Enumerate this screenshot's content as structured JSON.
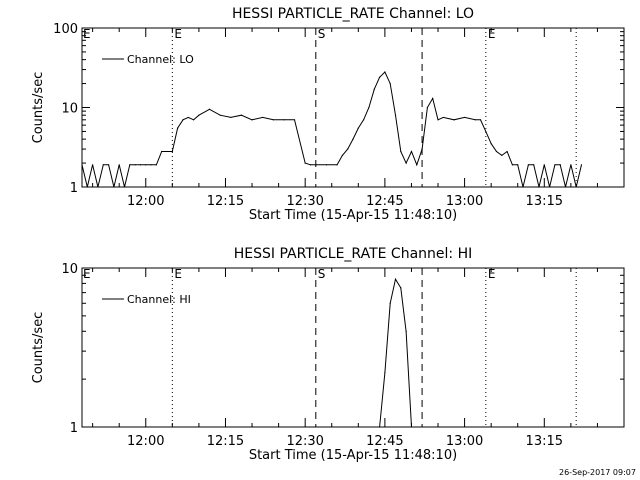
{
  "footer": {
    "timestamp": "26-Sep-2017 09:07"
  },
  "chart_data": [
    {
      "type": "line",
      "title": "HESSI PARTICLE_RATE Channel: LO",
      "xlabel": "Start Time (15-Apr-15 11:48:10)",
      "ylabel": "Counts/sec",
      "yscale": "log",
      "ylim": [
        1,
        100
      ],
      "y_ticks": [
        {
          "value": 1,
          "label": "1"
        },
        {
          "value": 10,
          "label": "10"
        },
        {
          "value": 100,
          "label": "100"
        }
      ],
      "xlim": [
        "11:48",
        "13:30"
      ],
      "x_ticks": [
        {
          "value": "12:00",
          "label": "12:00"
        },
        {
          "value": "12:15",
          "label": "12:15"
        },
        {
          "value": "12:30",
          "label": "12:30"
        },
        {
          "value": "12:45",
          "label": "12:45"
        },
        {
          "value": "13:00",
          "label": "13:00"
        },
        {
          "value": "13:15",
          "label": "13:15"
        }
      ],
      "legend": {
        "placement": "top-left",
        "label": "Channel: LO"
      },
      "markers": [
        {
          "time": "12:05",
          "label": "E",
          "style": "dotted"
        },
        {
          "time": "12:32",
          "label": "S",
          "style": "dashed"
        },
        {
          "time": "12:52",
          "label": "",
          "style": "dashed"
        },
        {
          "time": "13:04",
          "label": "E",
          "style": "dotted"
        },
        {
          "time": "13:21",
          "label": "",
          "style": "dotted"
        }
      ],
      "series": [
        {
          "x": [
            "11:48",
            "11:49",
            "11:50",
            "11:51",
            "11:52",
            "11:53",
            "11:54",
            "11:55",
            "11:56",
            "11:57",
            "11:58",
            "11:59",
            "12:00",
            "12:01",
            "12:02",
            "12:03",
            "12:04",
            "12:05",
            "12:06",
            "12:07",
            "12:08",
            "12:09",
            "12:10",
            "12:12",
            "12:14",
            "12:16",
            "12:18",
            "12:20",
            "12:22",
            "12:24",
            "12:26",
            "12:28",
            "12:30",
            "12:31",
            "12:32",
            "12:34",
            "12:36",
            "12:37",
            "12:38",
            "12:39",
            "12:40",
            "12:41",
            "12:42",
            "12:43",
            "12:44",
            "12:45",
            "12:46",
            "12:47",
            "12:48",
            "12:49",
            "12:50",
            "12:51",
            "12:52",
            "12:53",
            "12:54",
            "12:55",
            "12:56",
            "12:58",
            "13:00",
            "13:02",
            "13:03",
            "13:04",
            "13:05",
            "13:06",
            "13:07",
            "13:08",
            "13:09",
            "13:10",
            "13:11",
            "13:12",
            "13:13",
            "13:14",
            "13:15",
            "13:16",
            "13:17",
            "13:18",
            "13:19",
            "13:20",
            "13:21",
            "13:22"
          ],
          "y": [
            1.9,
            1,
            1.9,
            1,
            1.9,
            1.9,
            1,
            1.9,
            1,
            1.9,
            1.9,
            1.9,
            1.9,
            1.9,
            1.9,
            2.8,
            2.8,
            2.8,
            5.5,
            7,
            7.5,
            7,
            8,
            9.5,
            8,
            7.5,
            8,
            7,
            7.5,
            7,
            7,
            7,
            2,
            1.9,
            1.9,
            1.9,
            1.9,
            2.5,
            3,
            4,
            5.5,
            7,
            10,
            17,
            24,
            28,
            20,
            8,
            2.8,
            2,
            2.8,
            1.9,
            3,
            10,
            13,
            7,
            7.5,
            7,
            7.5,
            7,
            7,
            5,
            3.5,
            2.8,
            2.5,
            2.8,
            1.9,
            1.9,
            1,
            1.9,
            1.9,
            1,
            1.9,
            1,
            1.9,
            1.9,
            1,
            1.9,
            1,
            1.9
          ]
        }
      ]
    },
    {
      "type": "line",
      "title": "HESSI PARTICLE_RATE Channel: HI",
      "xlabel": "Start Time (15-Apr-15 11:48:10)",
      "ylabel": "Counts/sec",
      "yscale": "log",
      "ylim": [
        1,
        10
      ],
      "y_ticks": [
        {
          "value": 1,
          "label": "1"
        },
        {
          "value": 10,
          "label": "10"
        }
      ],
      "xlim": [
        "11:48",
        "13:30"
      ],
      "x_ticks": [
        {
          "value": "12:00",
          "label": "12:00"
        },
        {
          "value": "12:15",
          "label": "12:15"
        },
        {
          "value": "12:30",
          "label": "12:30"
        },
        {
          "value": "12:45",
          "label": "12:45"
        },
        {
          "value": "13:00",
          "label": "13:00"
        },
        {
          "value": "13:15",
          "label": "13:15"
        }
      ],
      "legend": {
        "placement": "top-left",
        "label": "Channel: HI"
      },
      "markers": [
        {
          "time": "12:05",
          "label": "E",
          "style": "dotted"
        },
        {
          "time": "12:32",
          "label": "S",
          "style": "dashed"
        },
        {
          "time": "12:52",
          "label": "",
          "style": "dashed"
        },
        {
          "time": "13:04",
          "label": "E",
          "style": "dotted"
        },
        {
          "time": "13:21",
          "label": "",
          "style": "dotted"
        }
      ],
      "series": [
        {
          "x": [
            "12:44",
            "12:45",
            "12:46",
            "12:47",
            "12:48",
            "12:49",
            "12:50"
          ],
          "y": [
            1,
            2.2,
            6,
            8.5,
            7.5,
            4,
            1
          ]
        }
      ]
    }
  ]
}
